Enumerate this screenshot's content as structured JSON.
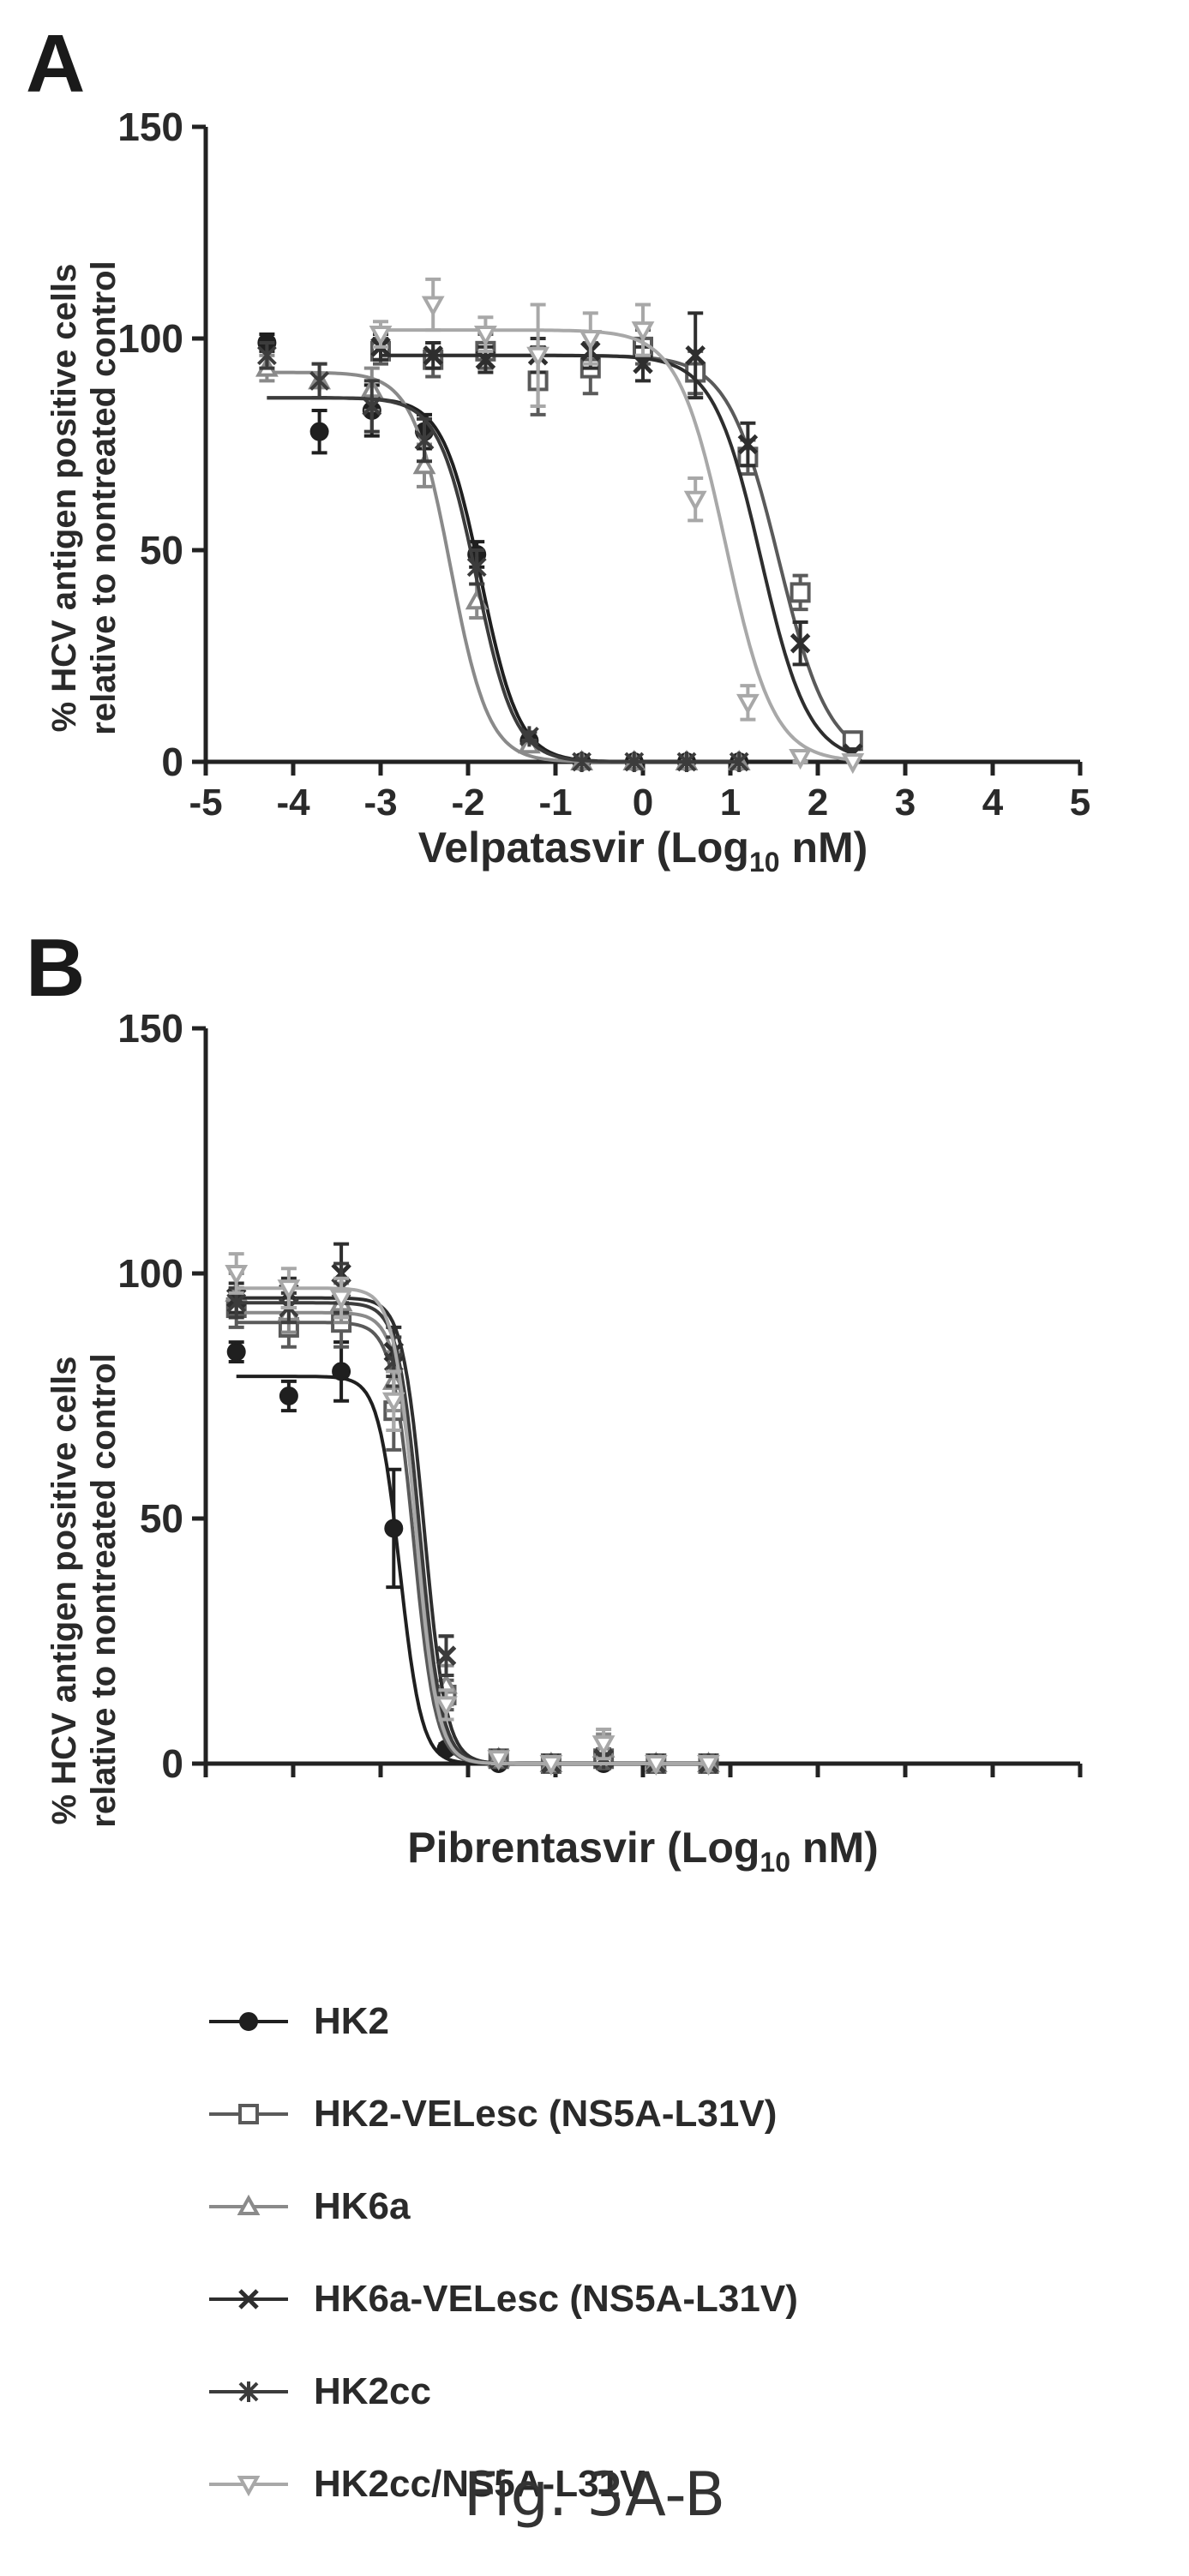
{
  "figure": {
    "caption": "Fig. 3A-B",
    "colors": {
      "HK2": "#1f1f1f",
      "HK2-VELesc (NS5A-L31V)": "#5a5a5a",
      "HK6a": "#8a8a8a",
      "HK6a-VELesc (NS5A-L31V)": "#2e2e2e",
      "HK2cc": "#3c3c3c",
      "HK2cc/NS5A-L31V": "#a8a8a8"
    }
  },
  "legend": {
    "items": [
      {
        "label": "HK2",
        "marker": "circle"
      },
      {
        "label": "HK2-VELesc (NS5A-L31V)",
        "marker": "square"
      },
      {
        "label": "HK6a",
        "marker": "triangle"
      },
      {
        "label": "HK6a-VELesc (NS5A-L31V)",
        "marker": "x"
      },
      {
        "label": "HK2cc",
        "marker": "star"
      },
      {
        "label": "HK2cc/NS5A-L31V",
        "marker": "triangle-down"
      }
    ]
  },
  "chart_data": [
    {
      "type": "scatter",
      "panel": "A",
      "ylabel_line1": "% HCV antigen positive cells",
      "ylabel_line2": "relative to nontreated control",
      "xlabel": "Velpatasvir (Log",
      "xlabel_sub": "10",
      "xlabel_end": " nM)",
      "xlim": [
        -5,
        5
      ],
      "ylim": [
        0,
        150
      ],
      "xticks": [
        -5,
        -4,
        -3,
        -2,
        -1,
        0,
        1,
        2,
        3,
        4,
        5
      ],
      "yticks": [
        0,
        50,
        100,
        150
      ],
      "grid": false,
      "series": [
        {
          "name": "HK2",
          "marker": "circle",
          "fit": {
            "bottom": 0,
            "top": 86,
            "logec50": -1.85,
            "hill": 2.0
          },
          "x": [
            -4.3,
            -3.7,
            -3.1,
            -2.5,
            -1.9,
            -1.3,
            -0.7,
            -0.1,
            0.5,
            1.1
          ],
          "y": [
            99,
            78,
            83,
            78,
            49,
            5,
            0,
            0,
            0,
            0
          ],
          "err": [
            2,
            5,
            6,
            4,
            3,
            1,
            0,
            0,
            0,
            0
          ]
        },
        {
          "name": "HK2-VELesc (NS5A-L31V)",
          "marker": "square",
          "fit": {
            "bottom": 0,
            "top": 96,
            "logec50": 1.55,
            "hill": 1.5
          },
          "x": [
            -3.0,
            -2.4,
            -1.8,
            -1.2,
            -0.6,
            0.0,
            0.6,
            1.2,
            1.8,
            2.4
          ],
          "y": [
            97,
            95,
            97,
            90,
            93,
            98,
            92,
            72,
            40,
            5
          ],
          "err": [
            3,
            4,
            4,
            8,
            6,
            4,
            5,
            4,
            4,
            2
          ]
        },
        {
          "name": "HK6a",
          "marker": "triangle",
          "fit": {
            "bottom": 0,
            "top": 92,
            "logec50": -2.2,
            "hill": 2.0
          },
          "x": [
            -4.3,
            -3.7,
            -3.1,
            -2.5,
            -1.9,
            -1.3,
            -0.7,
            -0.1,
            0.5,
            1.1
          ],
          "y": [
            93,
            90,
            88,
            70,
            38,
            4,
            0,
            0,
            0,
            0
          ],
          "err": [
            3,
            4,
            5,
            5,
            4,
            1,
            0,
            0,
            0,
            0
          ]
        },
        {
          "name": "HK6a-VELesc (NS5A-L31V)",
          "marker": "x",
          "fit": {
            "bottom": 0,
            "top": 96,
            "logec50": 1.35,
            "hill": 1.6
          },
          "x": [
            -3.0,
            -2.4,
            -1.8,
            -1.2,
            -0.6,
            0.0,
            0.6,
            1.2,
            1.8,
            2.4
          ],
          "y": [
            98,
            96,
            95,
            96,
            97,
            94,
            96,
            75,
            28,
            2
          ],
          "err": [
            3,
            3,
            3,
            4,
            4,
            4,
            10,
            5,
            5,
            1
          ]
        },
        {
          "name": "HK2cc",
          "marker": "star",
          "fit": {
            "bottom": 0,
            "top": 86,
            "logec50": -1.9,
            "hill": 2.0
          },
          "x": [
            -4.3,
            -3.7,
            -3.1,
            -2.5,
            -1.9,
            -1.3,
            -0.7,
            -0.1,
            0.5,
            1.1
          ],
          "y": [
            96,
            90,
            84,
            76,
            46,
            6,
            0,
            0,
            0,
            0
          ],
          "err": [
            3,
            4,
            6,
            5,
            4,
            1,
            0,
            0,
            0,
            0
          ]
        },
        {
          "name": "HK2cc/NS5A-L31V",
          "marker": "triangle-down",
          "fit": {
            "bottom": 0,
            "top": 102,
            "logec50": 0.95,
            "hill": 1.6
          },
          "x": [
            -3.0,
            -2.4,
            -1.8,
            -1.2,
            -0.6,
            0.0,
            0.6,
            1.2,
            1.8,
            2.4
          ],
          "y": [
            101,
            108,
            101,
            96,
            100,
            102,
            62,
            14,
            1,
            0
          ],
          "err": [
            3,
            6,
            4,
            12,
            6,
            6,
            5,
            4,
            1,
            0
          ]
        }
      ]
    },
    {
      "type": "scatter",
      "panel": "B",
      "ylabel_line1": "% HCV antigen positive cells",
      "ylabel_line2": "relative to nontreated control",
      "xlabel": "Pibrentasvir (Log",
      "xlabel_sub": "10",
      "xlabel_end": " nM)",
      "xlim": [
        -5,
        5
      ],
      "ylim": [
        0,
        150
      ],
      "xticks": [
        -5,
        -4,
        -3,
        -2,
        -1,
        0,
        1,
        2,
        3,
        4,
        5
      ],
      "yticks": [
        0,
        50,
        100,
        150
      ],
      "grid": false,
      "series": [
        {
          "name": "HK2",
          "marker": "circle",
          "fit": {
            "bottom": 0,
            "top": 79,
            "logec50": -2.78,
            "hill": 3.5
          },
          "x": [
            -4.65,
            -4.05,
            -3.45,
            -2.85,
            -2.25,
            -1.65,
            -1.05,
            -0.45,
            0.15,
            0.75
          ],
          "y": [
            84,
            75,
            80,
            48,
            3,
            0,
            0,
            0,
            0,
            0
          ],
          "err": [
            2,
            3,
            6,
            12,
            1,
            0,
            0,
            0,
            0,
            0
          ]
        },
        {
          "name": "HK2-VELesc (NS5A-L31V)",
          "marker": "square",
          "fit": {
            "bottom": 0,
            "top": 90,
            "logec50": -2.62,
            "hill": 3.5
          },
          "x": [
            -4.65,
            -4.05,
            -3.45,
            -2.85,
            -2.25,
            -1.65,
            -1.05,
            -0.45,
            0.15,
            0.75
          ],
          "y": [
            93,
            89,
            90,
            72,
            14,
            1,
            0,
            1,
            0,
            0
          ],
          "err": [
            4,
            4,
            5,
            8,
            3,
            1,
            0,
            2,
            0,
            0
          ]
        },
        {
          "name": "HK6a",
          "marker": "triangle",
          "fit": {
            "bottom": 0,
            "top": 92,
            "logec50": -2.58,
            "hill": 3.5
          },
          "x": [
            -4.65,
            -4.05,
            -3.45,
            -2.85,
            -2.25,
            -1.65,
            -1.05,
            -0.45,
            0.15,
            0.75
          ],
          "y": [
            96,
            92,
            94,
            78,
            16,
            1,
            0,
            3,
            0,
            0
          ],
          "err": [
            4,
            4,
            4,
            6,
            4,
            1,
            0,
            3,
            0,
            0
          ]
        },
        {
          "name": "HK6a-VELesc (NS5A-L31V)",
          "marker": "x",
          "fit": {
            "bottom": 0,
            "top": 95,
            "logec50": -2.5,
            "hill": 3.5
          },
          "x": [
            -4.65,
            -4.05,
            -3.45,
            -2.85,
            -2.25,
            -1.65,
            -1.05,
            -0.45,
            0.15,
            0.75
          ],
          "y": [
            95,
            96,
            100,
            84,
            22,
            1,
            0,
            1,
            0,
            0
          ],
          "err": [
            3,
            3,
            6,
            5,
            4,
            1,
            0,
            1,
            0,
            0
          ]
        },
        {
          "name": "HK2cc",
          "marker": "star",
          "fit": {
            "bottom": 0,
            "top": 94,
            "logec50": -2.55,
            "hill": 3.5
          },
          "x": [
            -4.65,
            -4.05,
            -3.45,
            -2.85,
            -2.25,
            -1.65,
            -1.05,
            -0.45,
            0.15,
            0.75
          ],
          "y": [
            94,
            93,
            97,
            82,
            22,
            1,
            0,
            1,
            0,
            0
          ],
          "err": [
            3,
            3,
            5,
            5,
            4,
            1,
            0,
            1,
            0,
            0
          ]
        },
        {
          "name": "HK2cc/NS5A-L31V",
          "marker": "triangle-down",
          "fit": {
            "bottom": 0,
            "top": 97,
            "logec50": -2.6,
            "hill": 3.5
          },
          "x": [
            -4.65,
            -4.05,
            -3.45,
            -2.85,
            -2.25,
            -1.65,
            -1.05,
            -0.45,
            0.15,
            0.75
          ],
          "y": [
            100,
            97,
            95,
            74,
            12,
            1,
            0,
            4,
            0,
            0
          ],
          "err": [
            4,
            4,
            4,
            6,
            3,
            1,
            0,
            3,
            0,
            0
          ]
        }
      ]
    }
  ]
}
